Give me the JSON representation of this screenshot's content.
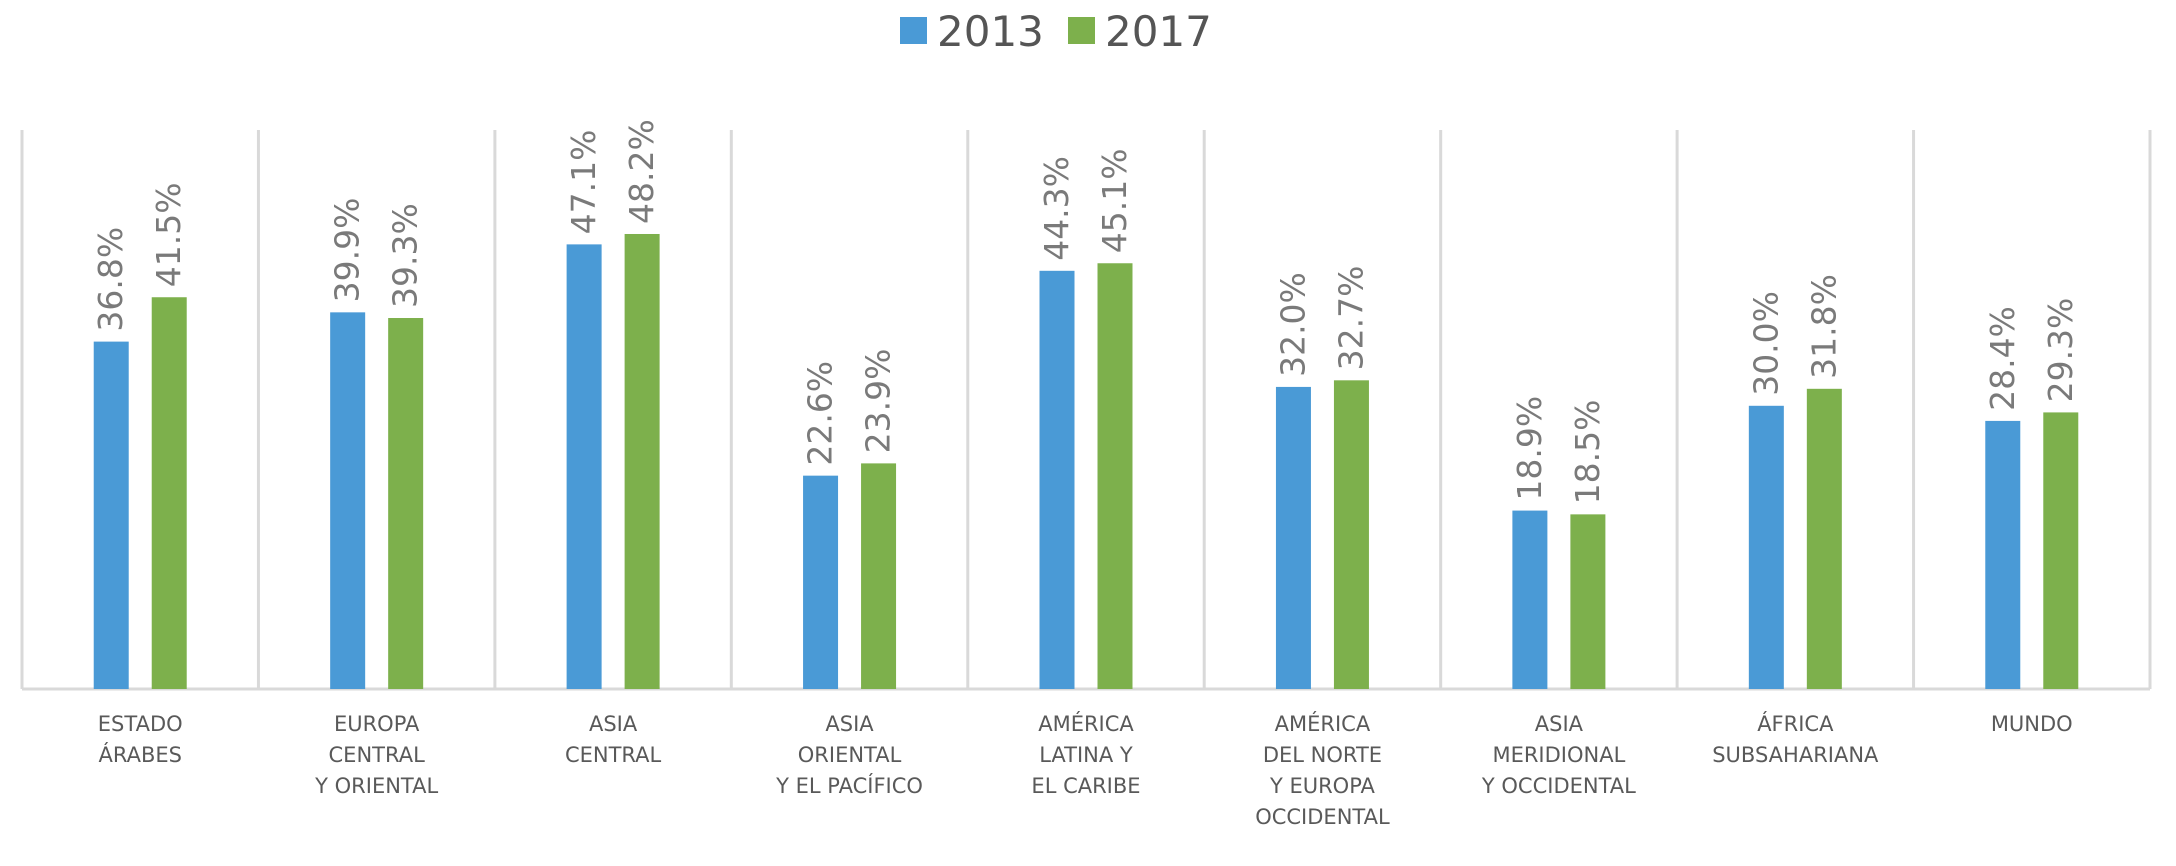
{
  "chart_data": {
    "type": "bar",
    "title": "",
    "xlabel": "",
    "ylabel": "",
    "categories": [
      "ESTADO ÁRABES",
      "EUROPA CENTRAL Y ORIENTAL",
      "ASIA CENTRAL",
      "ASIA ORIENTAL Y EL PACÍFICO",
      "AMÉRICA LATINA Y EL CARIBE",
      "AMÉRICA DEL NORTE Y EUROPA OCCIDENTAL",
      "ASIA MERIDIONAL Y OCCIDENTAL",
      "ÁFRICA SUBSAHARIANA",
      "MUNDO"
    ],
    "category_label_lines": [
      [
        "ESTADO",
        "ÁRABES"
      ],
      [
        "EUROPA",
        "CENTRAL",
        "Y ORIENTAL"
      ],
      [
        "ASIA",
        "CENTRAL"
      ],
      [
        "ASIA",
        "ORIENTAL",
        "Y EL PACÍFICO"
      ],
      [
        "AMÉRICA",
        "LATINA Y",
        "EL CARIBE"
      ],
      [
        "AMÉRICA",
        "DEL NORTE",
        "Y EUROPA",
        "OCCIDENTAL"
      ],
      [
        "ASIA",
        "MERIDIONAL",
        "Y OCCIDENTAL"
      ],
      [
        "ÁFRICA",
        "SUBSAHARIANA"
      ],
      [
        "MUNDO"
      ]
    ],
    "series": [
      {
        "name": "2013",
        "color": "#4a9ad6",
        "values": [
          36.8,
          39.9,
          47.1,
          22.6,
          44.3,
          32.0,
          18.9,
          30.0,
          28.4
        ],
        "labels": [
          "36.8%",
          "39.9%",
          "47.1%",
          "22.6%",
          "44.3%",
          "32.0%",
          "18.9%",
          "30.0%",
          "28.4%"
        ]
      },
      {
        "name": "2017",
        "color": "#7db04c",
        "values": [
          41.5,
          39.3,
          48.2,
          23.9,
          45.1,
          32.7,
          18.5,
          31.8,
          29.3
        ],
        "labels": [
          "41.5%",
          "39.3%",
          "48.2%",
          "23.9%",
          "45.1%",
          "32.7%",
          "18.5%",
          "31.8%",
          "29.3%"
        ]
      }
    ],
    "ylim": [
      0,
      60
    ],
    "grid": false,
    "legend_position": "top-center",
    "data_label_rotation": "vertical",
    "colors": {
      "axis": "#d9d9d9",
      "separator": "#d9d9d9",
      "label_text": "#7a7a7a",
      "category_text": "#595959"
    }
  }
}
